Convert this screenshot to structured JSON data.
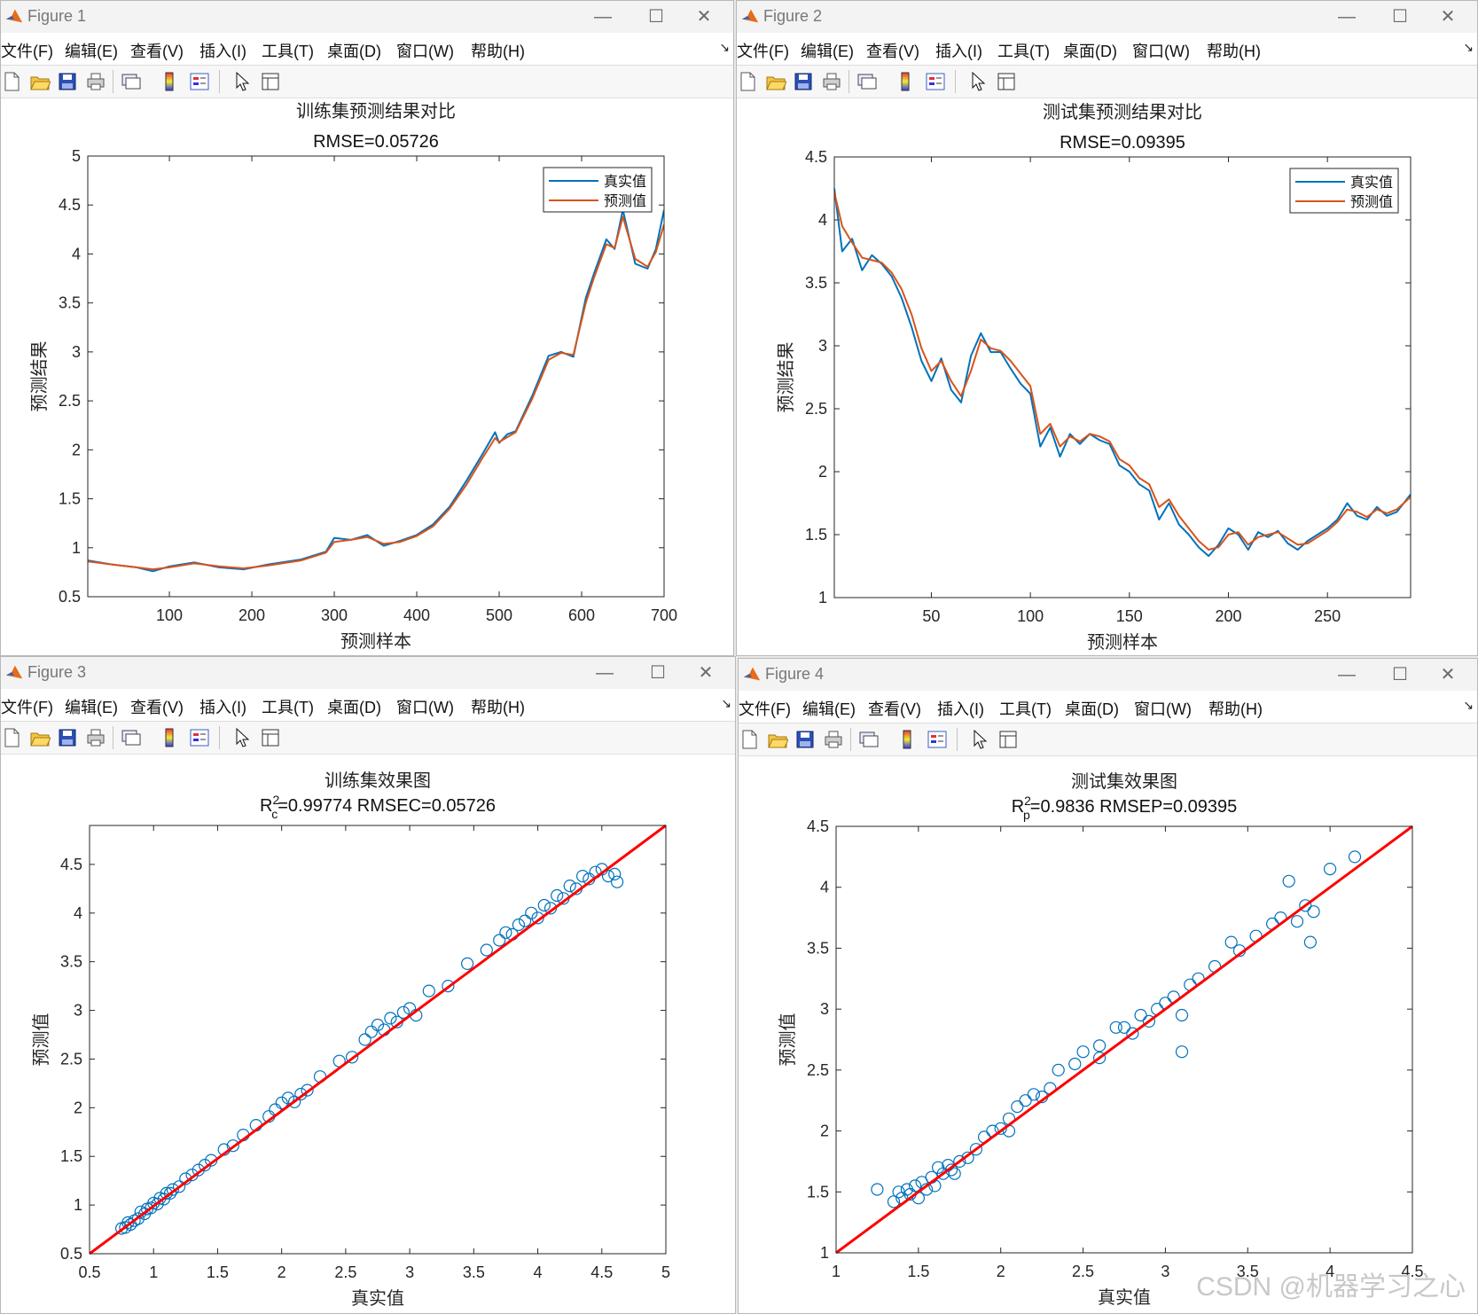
{
  "menu_labels": [
    "文件(F)",
    "编辑(E)",
    "查看(V)",
    "插入(I)",
    "工具(T)",
    "桌面(D)",
    "窗口(W)",
    "帮助(H)"
  ],
  "window_controls": {
    "minimize": "—",
    "maximize": "☐",
    "close": "✕"
  },
  "toolbar_icons": [
    "new-figure-icon",
    "open-file-icon",
    "save-icon",
    "print-icon",
    "link-plot-icon",
    "colorbar-icon",
    "legend-icon",
    "pointer-icon",
    "property-inspector-icon"
  ],
  "colors": {
    "series_true": "#0072bd",
    "series_pred": "#d95319",
    "fit_line": "#ff0000",
    "scatter": "#0072bd"
  },
  "watermark": "CSDN @机器学习之心",
  "windows": [
    {
      "title": "Figure 1"
    },
    {
      "title": "Figure 2"
    },
    {
      "title": "Figure 3"
    },
    {
      "title": "Figure 4"
    }
  ],
  "chart_data": [
    {
      "type": "line",
      "title": "训练集预测结果对比",
      "subtitle": "RMSE=0.05726",
      "xlabel": "预测样本",
      "ylabel": "预测结果",
      "xlim": [
        1,
        700
      ],
      "ylim": [
        0.5,
        5
      ],
      "xticks": [
        100,
        200,
        300,
        400,
        500,
        600,
        700
      ],
      "yticks": [
        0.5,
        1,
        1.5,
        2,
        2.5,
        3,
        3.5,
        4,
        4.5,
        5
      ],
      "legend": [
        "真实值",
        "预测值"
      ],
      "legend_position": "top-right",
      "x": [
        1,
        30,
        60,
        80,
        100,
        130,
        160,
        190,
        220,
        260,
        290,
        300,
        320,
        340,
        360,
        380,
        400,
        420,
        440,
        460,
        480,
        495,
        500,
        510,
        520,
        540,
        560,
        575,
        590,
        605,
        615,
        630,
        640,
        650,
        665,
        680,
        690,
        700
      ],
      "series": [
        {
          "name": "真实值",
          "values": [
            0.87,
            0.83,
            0.8,
            0.76,
            0.81,
            0.85,
            0.8,
            0.78,
            0.83,
            0.88,
            0.96,
            1.1,
            1.08,
            1.13,
            1.02,
            1.07,
            1.13,
            1.24,
            1.42,
            1.68,
            1.96,
            2.18,
            2.07,
            2.16,
            2.19,
            2.55,
            2.96,
            3.0,
            2.95,
            3.55,
            3.8,
            4.15,
            4.05,
            4.45,
            3.9,
            3.85,
            4.05,
            4.45
          ]
        },
        {
          "name": "预测值",
          "values": [
            0.86,
            0.83,
            0.8,
            0.78,
            0.8,
            0.84,
            0.81,
            0.79,
            0.82,
            0.87,
            0.95,
            1.06,
            1.08,
            1.11,
            1.04,
            1.06,
            1.12,
            1.22,
            1.4,
            1.64,
            1.92,
            2.12,
            2.08,
            2.13,
            2.18,
            2.52,
            2.92,
            2.99,
            2.97,
            3.5,
            3.76,
            4.1,
            4.06,
            4.38,
            3.95,
            3.87,
            4.02,
            4.3
          ]
        }
      ]
    },
    {
      "type": "line",
      "title": "测试集预测结果对比",
      "subtitle": "RMSE=0.09395",
      "xlabel": "预测样本",
      "ylabel": "预测结果",
      "xlim": [
        1,
        292
      ],
      "ylim": [
        1,
        4.5
      ],
      "xticks": [
        50,
        100,
        150,
        200,
        250
      ],
      "yticks": [
        1,
        1.5,
        2,
        2.5,
        3,
        3.5,
        4,
        4.5
      ],
      "legend": [
        "真实值",
        "预测值"
      ],
      "legend_position": "top-right",
      "x": [
        1,
        5,
        10,
        15,
        20,
        25,
        30,
        35,
        40,
        45,
        50,
        55,
        60,
        65,
        70,
        75,
        80,
        85,
        90,
        95,
        100,
        105,
        110,
        115,
        120,
        125,
        130,
        135,
        140,
        145,
        150,
        155,
        160,
        165,
        170,
        175,
        180,
        185,
        190,
        195,
        200,
        205,
        210,
        215,
        220,
        225,
        230,
        235,
        240,
        245,
        250,
        255,
        260,
        265,
        270,
        275,
        280,
        285,
        292
      ],
      "series": [
        {
          "name": "真实值",
          "values": [
            4.25,
            3.75,
            3.85,
            3.6,
            3.72,
            3.65,
            3.55,
            3.38,
            3.15,
            2.88,
            2.72,
            2.9,
            2.65,
            2.55,
            2.92,
            3.1,
            2.95,
            2.95,
            2.82,
            2.7,
            2.62,
            2.2,
            2.35,
            2.12,
            2.3,
            2.22,
            2.3,
            2.25,
            2.22,
            2.05,
            2.0,
            1.9,
            1.85,
            1.62,
            1.75,
            1.58,
            1.5,
            1.4,
            1.33,
            1.42,
            1.55,
            1.5,
            1.38,
            1.52,
            1.48,
            1.53,
            1.43,
            1.38,
            1.45,
            1.5,
            1.55,
            1.62,
            1.75,
            1.65,
            1.62,
            1.72,
            1.65,
            1.68,
            1.82
          ]
        },
        {
          "name": "预测值",
          "values": [
            4.22,
            3.95,
            3.82,
            3.7,
            3.68,
            3.66,
            3.58,
            3.45,
            3.25,
            2.98,
            2.8,
            2.88,
            2.72,
            2.6,
            2.8,
            3.05,
            2.98,
            2.96,
            2.88,
            2.78,
            2.68,
            2.3,
            2.38,
            2.2,
            2.28,
            2.24,
            2.3,
            2.28,
            2.24,
            2.1,
            2.05,
            1.95,
            1.9,
            1.72,
            1.78,
            1.65,
            1.55,
            1.45,
            1.38,
            1.4,
            1.5,
            1.52,
            1.42,
            1.48,
            1.5,
            1.52,
            1.47,
            1.42,
            1.43,
            1.48,
            1.53,
            1.6,
            1.7,
            1.68,
            1.64,
            1.7,
            1.67,
            1.7,
            1.8
          ]
        }
      ]
    },
    {
      "type": "scatter",
      "title": "训练集效果图",
      "subtitle": "R_c^2=0.99774  RMSEC=0.05726",
      "subtitle_parts": {
        "base": "R",
        "sup": "2",
        "sub": "c",
        "rest": "=0.99774  RMSEC=0.05726"
      },
      "xlabel": "真实值",
      "ylabel": "预测值",
      "xlim": [
        0.5,
        5
      ],
      "ylim": [
        0.5,
        4.9
      ],
      "xticks": [
        0.5,
        1,
        1.5,
        2,
        2.5,
        3,
        3.5,
        4,
        4.5,
        5
      ],
      "yticks": [
        0.5,
        1,
        1.5,
        2,
        2.5,
        3,
        3.5,
        4,
        4.5
      ],
      "fit_line": {
        "x": [
          0.5,
          5
        ],
        "y": [
          0.5,
          4.9
        ]
      },
      "points": [
        [
          0.75,
          0.76
        ],
        [
          0.78,
          0.77
        ],
        [
          0.8,
          0.82
        ],
        [
          0.82,
          0.8
        ],
        [
          0.85,
          0.84
        ],
        [
          0.88,
          0.86
        ],
        [
          0.9,
          0.93
        ],
        [
          0.93,
          0.91
        ],
        [
          0.95,
          0.96
        ],
        [
          0.98,
          0.97
        ],
        [
          1.0,
          1.02
        ],
        [
          1.03,
          1.01
        ],
        [
          1.05,
          1.07
        ],
        [
          1.08,
          1.06
        ],
        [
          1.1,
          1.12
        ],
        [
          1.13,
          1.12
        ],
        [
          1.15,
          1.16
        ],
        [
          1.2,
          1.19
        ],
        [
          1.25,
          1.27
        ],
        [
          1.3,
          1.31
        ],
        [
          1.35,
          1.36
        ],
        [
          1.4,
          1.41
        ],
        [
          1.45,
          1.46
        ],
        [
          1.55,
          1.57
        ],
        [
          1.62,
          1.61
        ],
        [
          1.7,
          1.72
        ],
        [
          1.8,
          1.82
        ],
        [
          1.9,
          1.91
        ],
        [
          1.95,
          1.98
        ],
        [
          2.0,
          2.05
        ],
        [
          2.05,
          2.1
        ],
        [
          2.1,
          2.06
        ],
        [
          2.15,
          2.14
        ],
        [
          2.2,
          2.18
        ],
        [
          2.3,
          2.32
        ],
        [
          2.45,
          2.48
        ],
        [
          2.55,
          2.52
        ],
        [
          2.65,
          2.7
        ],
        [
          2.7,
          2.78
        ],
        [
          2.75,
          2.85
        ],
        [
          2.8,
          2.8
        ],
        [
          2.85,
          2.92
        ],
        [
          2.9,
          2.88
        ],
        [
          2.95,
          2.98
        ],
        [
          3.0,
          3.02
        ],
        [
          3.05,
          2.95
        ],
        [
          3.15,
          3.2
        ],
        [
          3.3,
          3.25
        ],
        [
          3.45,
          3.48
        ],
        [
          3.6,
          3.62
        ],
        [
          3.7,
          3.72
        ],
        [
          3.75,
          3.8
        ],
        [
          3.8,
          3.78
        ],
        [
          3.85,
          3.88
        ],
        [
          3.9,
          3.92
        ],
        [
          3.95,
          4.0
        ],
        [
          4.0,
          3.95
        ],
        [
          4.05,
          4.08
        ],
        [
          4.1,
          4.05
        ],
        [
          4.15,
          4.18
        ],
        [
          4.2,
          4.15
        ],
        [
          4.25,
          4.28
        ],
        [
          4.3,
          4.25
        ],
        [
          4.35,
          4.38
        ],
        [
          4.4,
          4.35
        ],
        [
          4.45,
          4.42
        ],
        [
          4.5,
          4.45
        ],
        [
          4.55,
          4.38
        ],
        [
          4.6,
          4.4
        ],
        [
          4.62,
          4.32
        ]
      ]
    },
    {
      "type": "scatter",
      "title": "测试集效果图",
      "subtitle": "R_p^2=0.9836  RMSEP=0.09395",
      "subtitle_parts": {
        "base": "R",
        "sup": "2",
        "sub": "p",
        "rest": "=0.9836  RMSEP=0.09395"
      },
      "xlabel": "真实值",
      "ylabel": "预测值",
      "xlim": [
        1,
        4.5
      ],
      "ylim": [
        1,
        4.5
      ],
      "xticks": [
        1,
        1.5,
        2,
        2.5,
        3,
        3.5,
        4,
        4.5
      ],
      "yticks": [
        1,
        1.5,
        2,
        2.5,
        3,
        3.5,
        4,
        4.5
      ],
      "fit_line": {
        "x": [
          1,
          4.5
        ],
        "y": [
          1,
          4.5
        ]
      },
      "points": [
        [
          1.35,
          1.42
        ],
        [
          1.38,
          1.5
        ],
        [
          1.4,
          1.45
        ],
        [
          1.43,
          1.52
        ],
        [
          1.45,
          1.48
        ],
        [
          1.48,
          1.55
        ],
        [
          1.5,
          1.45
        ],
        [
          1.52,
          1.58
        ],
        [
          1.55,
          1.52
        ],
        [
          1.58,
          1.62
        ],
        [
          1.6,
          1.55
        ],
        [
          1.62,
          1.7
        ],
        [
          1.65,
          1.65
        ],
        [
          1.68,
          1.72
        ],
        [
          1.7,
          1.68
        ],
        [
          1.75,
          1.75
        ],
        [
          1.8,
          1.78
        ],
        [
          1.85,
          1.85
        ],
        [
          1.9,
          1.95
        ],
        [
          1.95,
          2.0
        ],
        [
          2.0,
          2.02
        ],
        [
          2.05,
          2.1
        ],
        [
          2.1,
          2.2
        ],
        [
          2.15,
          2.25
        ],
        [
          2.2,
          2.3
        ],
        [
          2.25,
          2.28
        ],
        [
          2.3,
          2.35
        ],
        [
          2.35,
          2.5
        ],
        [
          2.45,
          2.55
        ],
        [
          2.5,
          2.65
        ],
        [
          2.6,
          2.7
        ],
        [
          2.7,
          2.85
        ],
        [
          2.8,
          2.8
        ],
        [
          2.85,
          2.95
        ],
        [
          2.9,
          2.9
        ],
        [
          2.95,
          3.0
        ],
        [
          3.0,
          3.05
        ],
        [
          3.05,
          3.1
        ],
        [
          3.1,
          2.95
        ],
        [
          3.15,
          3.2
        ],
        [
          3.2,
          3.25
        ],
        [
          3.3,
          3.35
        ],
        [
          3.4,
          3.55
        ],
        [
          3.45,
          3.48
        ],
        [
          3.55,
          3.6
        ],
        [
          3.65,
          3.7
        ],
        [
          3.7,
          3.75
        ],
        [
          3.75,
          4.05
        ],
        [
          3.8,
          3.72
        ],
        [
          3.85,
          3.85
        ],
        [
          3.88,
          3.55
        ],
        [
          3.9,
          3.8
        ],
        [
          4.0,
          4.15
        ],
        [
          4.15,
          4.25
        ],
        [
          2.75,
          2.85
        ],
        [
          1.25,
          1.52
        ],
        [
          1.72,
          1.65
        ],
        [
          2.6,
          2.6
        ],
        [
          3.1,
          2.65
        ],
        [
          2.05,
          2.0
        ]
      ]
    }
  ]
}
